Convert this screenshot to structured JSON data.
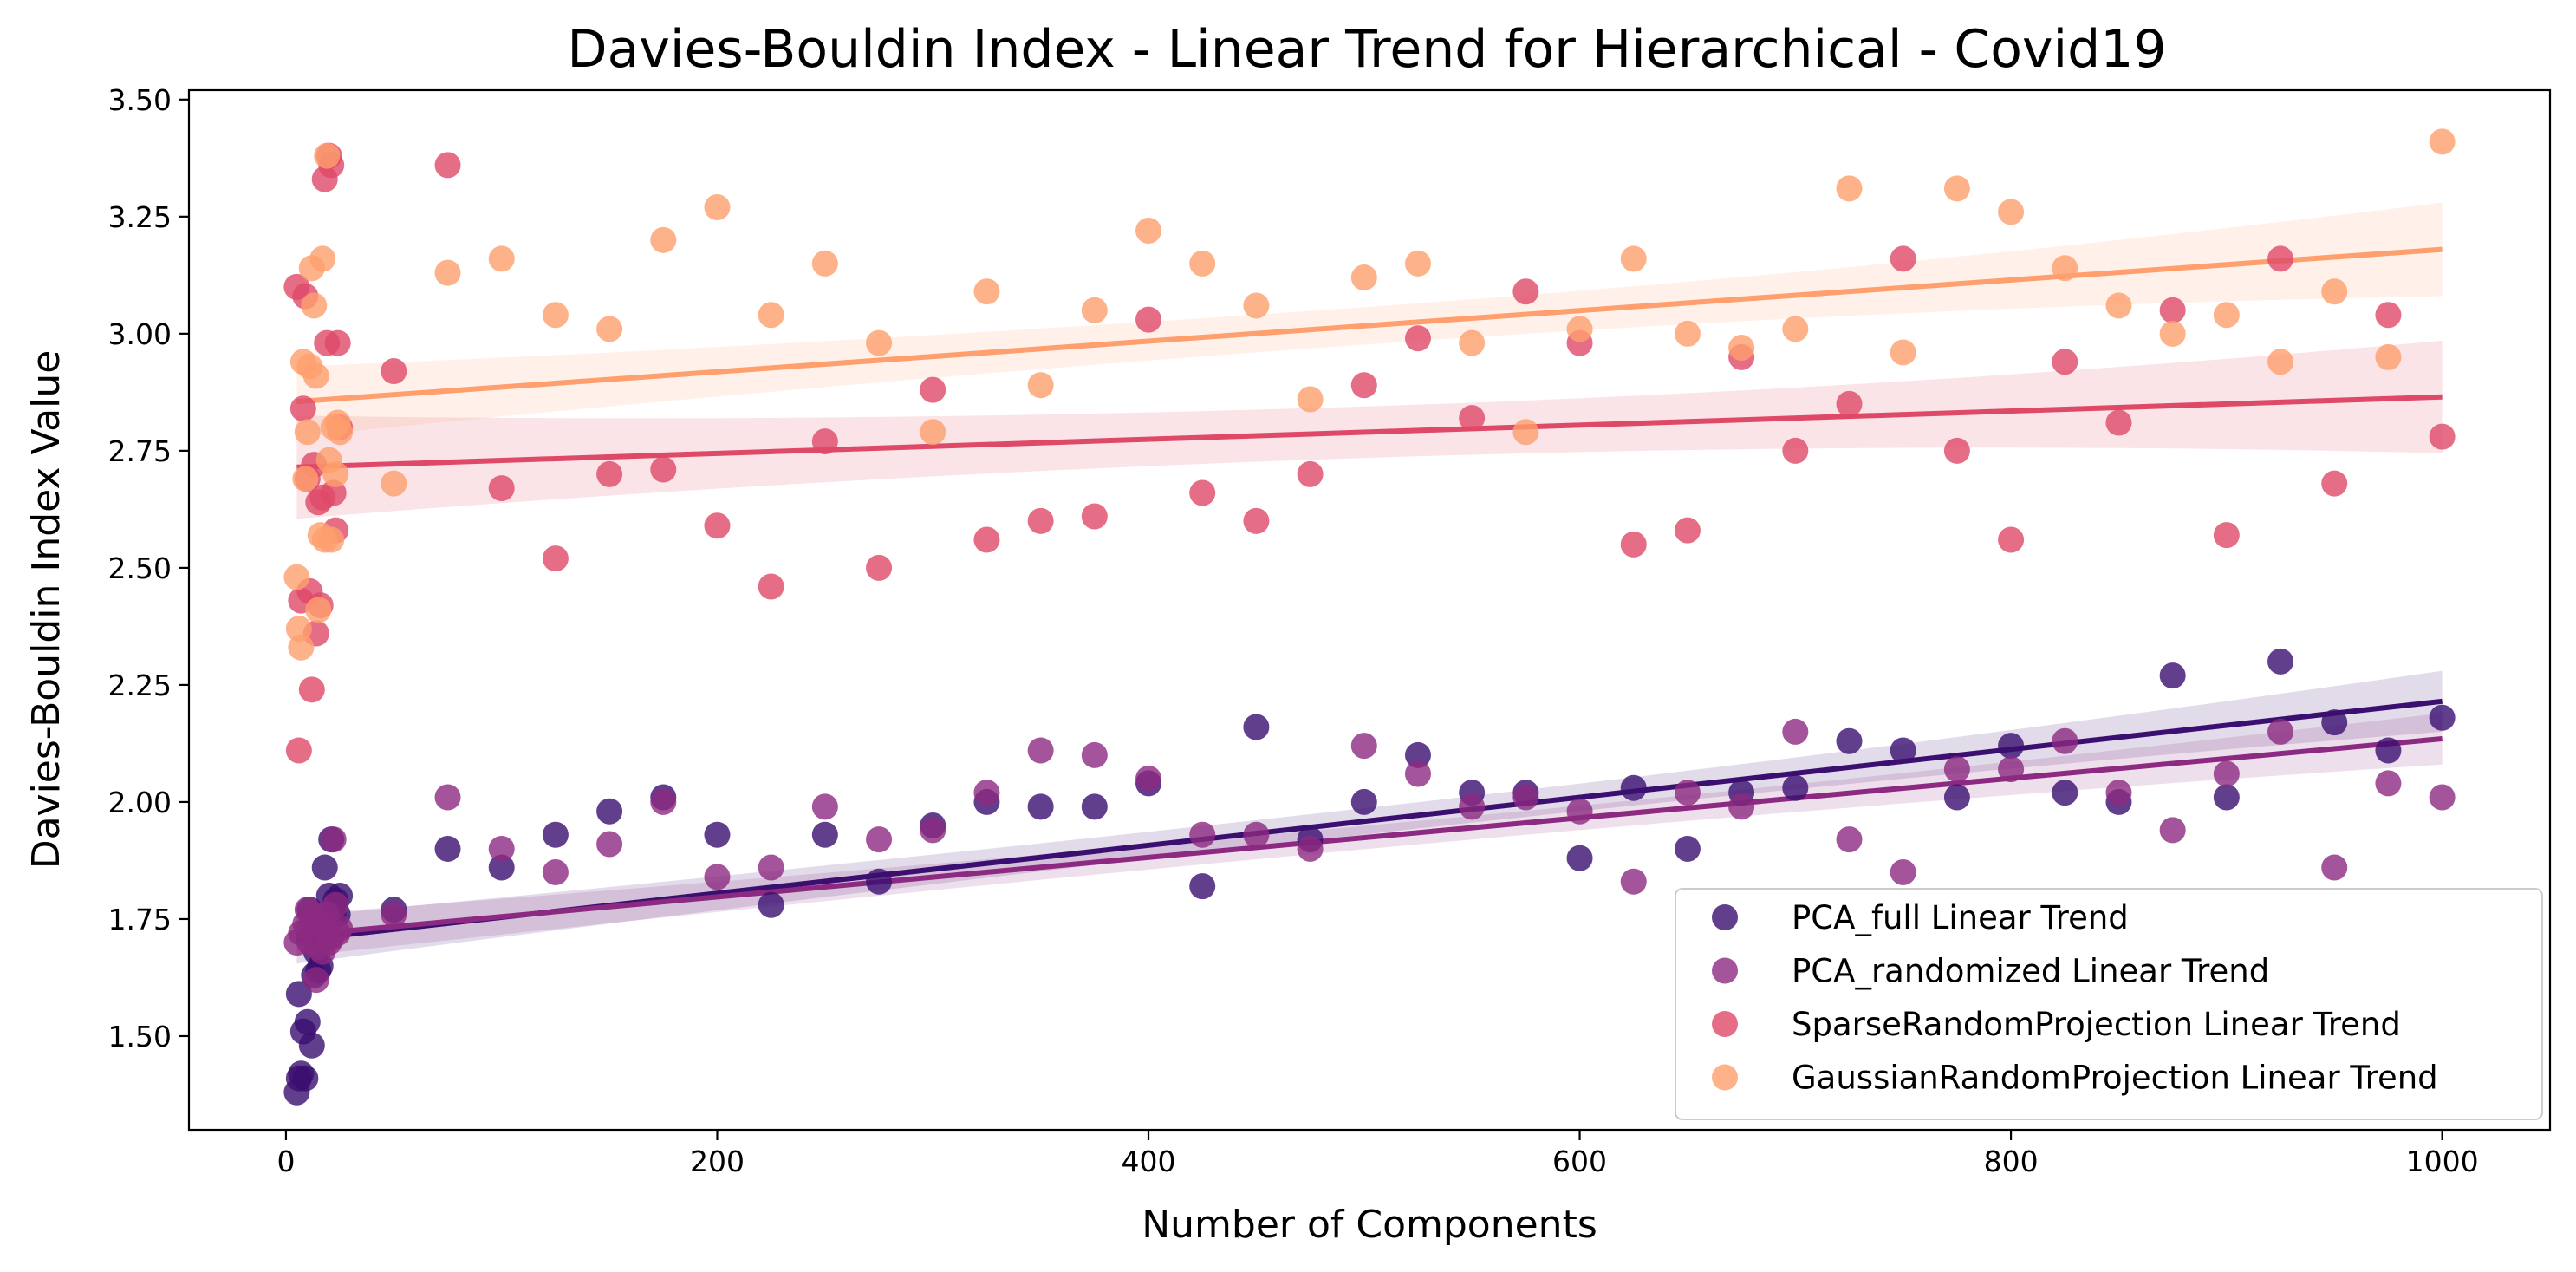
{
  "chart_data": {
    "type": "scatter",
    "title": "Davies-Bouldin Index - Linear Trend for Hierarchical - Covid19",
    "xlabel": "Number of Components",
    "ylabel": "Davies-Bouldin Index Value",
    "xlim": [
      -45,
      1050
    ],
    "ylim": [
      1.3,
      3.52
    ],
    "xticks": [
      0,
      200,
      400,
      600,
      800,
      1000
    ],
    "yticks": [
      1.5,
      1.75,
      2.0,
      2.25,
      2.5,
      2.75,
      3.0,
      3.25,
      3.5
    ],
    "ytick_labels": [
      "1.50",
      "1.75",
      "2.00",
      "2.25",
      "2.50",
      "2.75",
      "3.00",
      "3.25",
      "3.50"
    ],
    "legend_position": "lower-right",
    "series": [
      {
        "name": "PCA_full Linear Trend",
        "color": "#3b0f70",
        "trend": [
          [
            5,
            1.705
          ],
          [
            1000,
            2.215
          ]
        ],
        "band_halfwidth": [
          0.05,
          0.028,
          0.065
        ],
        "points": [
          [
            5,
            1.38
          ],
          [
            6,
            1.41
          ],
          [
            6,
            1.59
          ],
          [
            7,
            1.42
          ],
          [
            8,
            1.51
          ],
          [
            9,
            1.41
          ],
          [
            10,
            1.53
          ],
          [
            11,
            1.77
          ],
          [
            12,
            1.48
          ],
          [
            13,
            1.63
          ],
          [
            14,
            1.68
          ],
          [
            15,
            1.64
          ],
          [
            16,
            1.65
          ],
          [
            17,
            1.71
          ],
          [
            18,
            1.86
          ],
          [
            19,
            1.73
          ],
          [
            20,
            1.8
          ],
          [
            21,
            1.92
          ],
          [
            22,
            1.76
          ],
          [
            23,
            1.79
          ],
          [
            24,
            1.76
          ],
          [
            25,
            1.8
          ],
          [
            50,
            1.77
          ],
          [
            75,
            1.9
          ],
          [
            100,
            1.86
          ],
          [
            125,
            1.93
          ],
          [
            150,
            1.98
          ],
          [
            175,
            2.01
          ],
          [
            200,
            1.93
          ],
          [
            225,
            1.78
          ],
          [
            250,
            1.93
          ],
          [
            275,
            1.83
          ],
          [
            300,
            1.95
          ],
          [
            325,
            2.0
          ],
          [
            350,
            1.99
          ],
          [
            375,
            1.99
          ],
          [
            400,
            2.04
          ],
          [
            425,
            1.82
          ],
          [
            450,
            2.16
          ],
          [
            475,
            1.92
          ],
          [
            500,
            2.0
          ],
          [
            525,
            2.1
          ],
          [
            550,
            2.02
          ],
          [
            575,
            2.02
          ],
          [
            600,
            1.88
          ],
          [
            625,
            2.03
          ],
          [
            650,
            1.9
          ],
          [
            675,
            2.02
          ],
          [
            700,
            2.03
          ],
          [
            725,
            2.13
          ],
          [
            750,
            2.11
          ],
          [
            775,
            2.01
          ],
          [
            800,
            2.12
          ],
          [
            825,
            2.02
          ],
          [
            850,
            2.0
          ],
          [
            875,
            2.27
          ],
          [
            900,
            2.01
          ],
          [
            925,
            2.3
          ],
          [
            950,
            2.17
          ],
          [
            975,
            2.11
          ],
          [
            1000,
            2.18
          ]
        ]
      },
      {
        "name": "PCA_randomized Linear Trend",
        "color": "#8c2981",
        "trend": [
          [
            5,
            1.715
          ],
          [
            1000,
            2.135
          ]
        ],
        "band_halfwidth": [
          0.045,
          0.025,
          0.055
        ],
        "points": [
          [
            5,
            1.7
          ],
          [
            7,
            1.72
          ],
          [
            9,
            1.74
          ],
          [
            10,
            1.77
          ],
          [
            11,
            1.7
          ],
          [
            12,
            1.74
          ],
          [
            13,
            1.76
          ],
          [
            14,
            1.62
          ],
          [
            15,
            1.69
          ],
          [
            16,
            1.74
          ],
          [
            17,
            1.68
          ],
          [
            18,
            1.73
          ],
          [
            19,
            1.76
          ],
          [
            20,
            1.7
          ],
          [
            21,
            1.71
          ],
          [
            22,
            1.92
          ],
          [
            23,
            1.78
          ],
          [
            24,
            1.72
          ],
          [
            25,
            1.73
          ],
          [
            50,
            1.76
          ],
          [
            75,
            2.01
          ],
          [
            100,
            1.9
          ],
          [
            125,
            1.85
          ],
          [
            150,
            1.91
          ],
          [
            175,
            2.0
          ],
          [
            200,
            1.84
          ],
          [
            225,
            1.86
          ],
          [
            250,
            1.99
          ],
          [
            275,
            1.92
          ],
          [
            300,
            1.94
          ],
          [
            325,
            2.02
          ],
          [
            350,
            2.11
          ],
          [
            375,
            2.1
          ],
          [
            400,
            2.05
          ],
          [
            425,
            1.93
          ],
          [
            450,
            1.93
          ],
          [
            475,
            1.9
          ],
          [
            500,
            2.12
          ],
          [
            525,
            2.06
          ],
          [
            550,
            1.99
          ],
          [
            575,
            2.01
          ],
          [
            600,
            1.98
          ],
          [
            625,
            1.83
          ],
          [
            650,
            2.02
          ],
          [
            675,
            1.99
          ],
          [
            700,
            2.15
          ],
          [
            725,
            1.92
          ],
          [
            750,
            1.85
          ],
          [
            775,
            2.07
          ],
          [
            800,
            2.07
          ],
          [
            825,
            2.13
          ],
          [
            850,
            2.02
          ],
          [
            875,
            1.94
          ],
          [
            900,
            2.06
          ],
          [
            925,
            2.15
          ],
          [
            950,
            1.86
          ],
          [
            975,
            2.04
          ],
          [
            1000,
            2.01
          ]
        ]
      },
      {
        "name": "SparseRandomProjection Linear Trend",
        "color": "#de4968",
        "trend": [
          [
            5,
            2.715
          ],
          [
            1000,
            2.865
          ]
        ],
        "band_halfwidth": [
          0.11,
          0.055,
          0.12
        ],
        "points": [
          [
            5,
            3.1
          ],
          [
            6,
            2.11
          ],
          [
            7,
            2.43
          ],
          [
            8,
            2.84
          ],
          [
            9,
            3.08
          ],
          [
            10,
            2.69
          ],
          [
            11,
            2.45
          ],
          [
            12,
            2.24
          ],
          [
            13,
            2.72
          ],
          [
            14,
            2.36
          ],
          [
            15,
            2.64
          ],
          [
            16,
            2.42
          ],
          [
            17,
            2.65
          ],
          [
            18,
            3.33
          ],
          [
            19,
            2.98
          ],
          [
            20,
            3.38
          ],
          [
            21,
            3.36
          ],
          [
            22,
            2.66
          ],
          [
            23,
            2.58
          ],
          [
            24,
            2.98
          ],
          [
            25,
            2.8
          ],
          [
            50,
            2.92
          ],
          [
            75,
            3.36
          ],
          [
            100,
            2.67
          ],
          [
            125,
            2.52
          ],
          [
            150,
            2.7
          ],
          [
            175,
            2.71
          ],
          [
            200,
            2.59
          ],
          [
            225,
            2.46
          ],
          [
            250,
            2.77
          ],
          [
            275,
            2.5
          ],
          [
            300,
            2.88
          ],
          [
            325,
            2.56
          ],
          [
            350,
            2.6
          ],
          [
            375,
            2.61
          ],
          [
            400,
            3.03
          ],
          [
            425,
            2.66
          ],
          [
            450,
            2.6
          ],
          [
            475,
            2.7
          ],
          [
            500,
            2.89
          ],
          [
            525,
            2.99
          ],
          [
            550,
            2.82
          ],
          [
            575,
            3.09
          ],
          [
            600,
            2.98
          ],
          [
            625,
            2.55
          ],
          [
            650,
            2.58
          ],
          [
            675,
            2.95
          ],
          [
            700,
            2.75
          ],
          [
            725,
            2.85
          ],
          [
            750,
            3.16
          ],
          [
            775,
            2.75
          ],
          [
            800,
            2.56
          ],
          [
            825,
            2.94
          ],
          [
            850,
            2.81
          ],
          [
            875,
            3.05
          ],
          [
            900,
            2.57
          ],
          [
            925,
            3.16
          ],
          [
            950,
            2.68
          ],
          [
            975,
            3.04
          ],
          [
            1000,
            2.78
          ]
        ]
      },
      {
        "name": "GaussianRandomProjection Linear Trend",
        "color": "#fe9f6d",
        "trend": [
          [
            5,
            2.855
          ],
          [
            1000,
            3.18
          ]
        ],
        "band_halfwidth": [
          0.075,
          0.04,
          0.1
        ],
        "points": [
          [
            5,
            2.48
          ],
          [
            6,
            2.37
          ],
          [
            7,
            2.33
          ],
          [
            8,
            2.94
          ],
          [
            9,
            2.69
          ],
          [
            10,
            2.79
          ],
          [
            11,
            2.93
          ],
          [
            12,
            3.14
          ],
          [
            13,
            3.06
          ],
          [
            14,
            2.91
          ],
          [
            15,
            2.41
          ],
          [
            16,
            2.57
          ],
          [
            17,
            3.16
          ],
          [
            18,
            2.56
          ],
          [
            19,
            3.38
          ],
          [
            20,
            2.73
          ],
          [
            21,
            2.56
          ],
          [
            22,
            2.8
          ],
          [
            23,
            2.7
          ],
          [
            24,
            2.81
          ],
          [
            25,
            2.79
          ],
          [
            50,
            2.68
          ],
          [
            75,
            3.13
          ],
          [
            100,
            3.16
          ],
          [
            125,
            3.04
          ],
          [
            150,
            3.01
          ],
          [
            175,
            3.2
          ],
          [
            200,
            3.27
          ],
          [
            225,
            3.04
          ],
          [
            250,
            3.15
          ],
          [
            275,
            2.98
          ],
          [
            300,
            2.79
          ],
          [
            325,
            3.09
          ],
          [
            350,
            2.89
          ],
          [
            375,
            3.05
          ],
          [
            400,
            3.22
          ],
          [
            425,
            3.15
          ],
          [
            450,
            3.06
          ],
          [
            475,
            2.86
          ],
          [
            500,
            3.12
          ],
          [
            525,
            3.15
          ],
          [
            550,
            2.98
          ],
          [
            575,
            2.79
          ],
          [
            600,
            3.01
          ],
          [
            625,
            3.16
          ],
          [
            650,
            3.0
          ],
          [
            675,
            2.97
          ],
          [
            700,
            3.01
          ],
          [
            725,
            3.31
          ],
          [
            750,
            2.96
          ],
          [
            775,
            3.31
          ],
          [
            800,
            3.26
          ],
          [
            825,
            3.14
          ],
          [
            850,
            3.06
          ],
          [
            875,
            3.0
          ],
          [
            900,
            3.04
          ],
          [
            925,
            2.94
          ],
          [
            950,
            3.09
          ],
          [
            975,
            2.95
          ],
          [
            1000,
            3.41
          ]
        ]
      }
    ]
  }
}
